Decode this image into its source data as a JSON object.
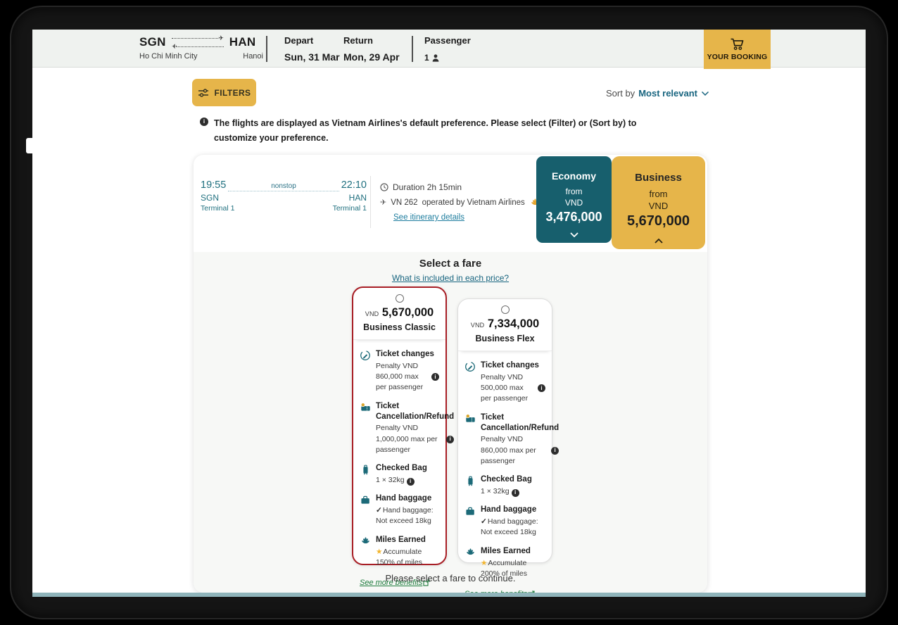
{
  "header": {
    "route": {
      "from_code": "SGN",
      "to_code": "HAN",
      "from_city": "Ho Chi Minh City",
      "to_city": "Hanoi"
    },
    "depart_label": "Depart",
    "depart_value": "Sun, 31 Mar",
    "return_label": "Return",
    "return_value": "Mon, 29 Apr",
    "passenger_label": "Passenger",
    "passenger_count": "1",
    "your_booking_label": "YOUR BOOKING"
  },
  "toolbar": {
    "filters_label": "FILTERS",
    "sort_by_label": "Sort by",
    "sort_value": "Most relevant"
  },
  "notice": "The flights are displayed as Vietnam Airlines's default preference. Please select (Filter) or (Sort by) to customize your preference.",
  "flight": {
    "depart_time": "19:55",
    "arrive_time": "22:10",
    "stop_label": "nonstop",
    "from_code": "SGN",
    "to_code": "HAN",
    "from_terminal": "Terminal 1",
    "to_terminal": "Terminal 1",
    "duration": "Duration 2h 15min",
    "flight_no": "VN 262",
    "operated_by": "operated by Vietnam Airlines",
    "itinerary_link": "See itinerary details"
  },
  "cabins": [
    {
      "name": "Economy",
      "from_label": "from",
      "currency": "VND",
      "price": "3,476,000",
      "state": "collapsed"
    },
    {
      "name": "Business",
      "from_label": "from",
      "currency": "VND",
      "price": "5,670,000",
      "state": "expanded"
    }
  ],
  "fare_section": {
    "title": "Select a fare",
    "info_link": "What is included in each price?",
    "see_more_label": "See more benefits",
    "footer_note": "Please select a fare to continue."
  },
  "fares": [
    {
      "currency": "VND",
      "price": "5,670,000",
      "name": "Business Classic",
      "selected": true,
      "benefits": [
        {
          "icon": "ticket-change-icon",
          "title": "Ticket changes",
          "desc": "Penalty VND 860,000 max per passenger",
          "info": "end"
        },
        {
          "icon": "ticket-refund-icon",
          "title": "Ticket Cancellation/Refund",
          "desc": "Penalty VND 1,000,000 max per passenger",
          "info": "end"
        },
        {
          "icon": "checked-bag-icon",
          "title": "Checked Bag",
          "desc": "1 × 32kg",
          "info": "inline"
        },
        {
          "icon": "hand-baggage-icon",
          "title": "Hand baggage",
          "desc": "Hand baggage: Not exceed 18kg",
          "prefix": "check"
        },
        {
          "icon": "miles-earned-icon",
          "title": "Miles Earned",
          "desc": "Accumulate 150% of miles",
          "prefix": "star"
        }
      ]
    },
    {
      "currency": "VND",
      "price": "7,334,000",
      "name": "Business Flex",
      "selected": false,
      "benefits": [
        {
          "icon": "ticket-change-icon",
          "title": "Ticket changes",
          "desc": "Penalty VND 500,000 max per passenger",
          "info": "end"
        },
        {
          "icon": "ticket-refund-icon",
          "title": "Ticket Cancellation/Refund",
          "desc": "Penalty VND 860,000 max per passenger",
          "info": "end"
        },
        {
          "icon": "checked-bag-icon",
          "title": "Checked Bag",
          "desc": "1 × 32kg",
          "info": "inline"
        },
        {
          "icon": "hand-baggage-icon",
          "title": "Hand baggage",
          "desc": "Hand baggage: Not exceed 18kg",
          "prefix": "check"
        },
        {
          "icon": "miles-earned-icon",
          "title": "Miles Earned",
          "desc": "Accumulate 200% of miles",
          "prefix": "star"
        }
      ]
    }
  ],
  "colors": {
    "gold": "#E6B54A",
    "teal_dark": "#175F6D",
    "teal_text": "#20707F",
    "red_selected": "#A81E25",
    "green_link": "#1B7A3A",
    "link_blue": "#1E7D9E"
  }
}
